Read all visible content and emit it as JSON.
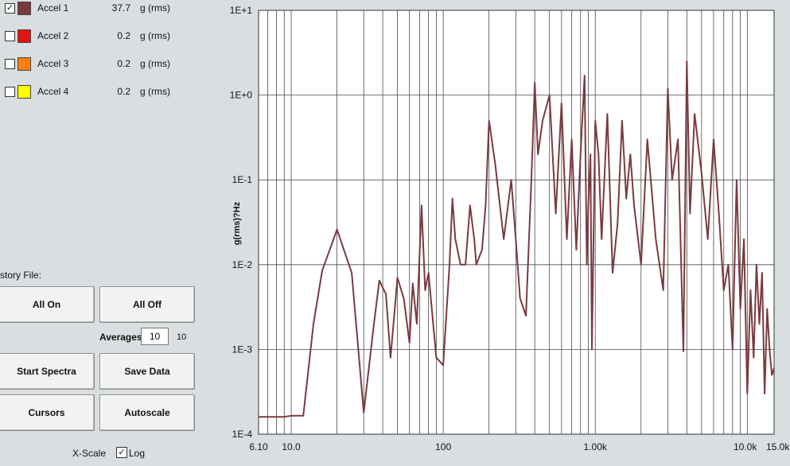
{
  "channels": [
    {
      "label": "Accel 1",
      "value": "37.7",
      "unit": "g (rms)",
      "checked": true,
      "color": "#7a3a3f"
    },
    {
      "label": "Accel 2",
      "value": "0.2",
      "unit": "g (rms)",
      "checked": false,
      "color": "#e3140f"
    },
    {
      "label": "Accel 3",
      "value": "0.2",
      "unit": "g (rms)",
      "checked": false,
      "color": "#ff7f15"
    },
    {
      "label": "Accel 4",
      "value": "0.2",
      "unit": "g (rms)",
      "checked": false,
      "color": "#ffff00"
    }
  ],
  "history_file_label": "story File:",
  "buttons": {
    "all_on": "All On",
    "all_off": "All Off",
    "start_spectra": "Start Spectra",
    "save_data": "Save Data",
    "cursors": "Cursors",
    "autoscale": "Autoscale"
  },
  "averages": {
    "label": "Averages",
    "input_value": "10",
    "current": "10"
  },
  "xscale": {
    "label": "X-Scale",
    "log_label": "Log",
    "log_checked": true
  },
  "chart_data": {
    "type": "line",
    "ylabel": "g(rms)?Hz",
    "x_scale": "log",
    "y_scale": "log",
    "xlim": [
      6.1,
      15000
    ],
    "ylim": [
      0.0001,
      10
    ],
    "x_tick_labels": [
      "6.10",
      "10.0",
      "100",
      "1.00k",
      "10.0k",
      "15.0k"
    ],
    "y_tick_labels": [
      "1E+1",
      "1E+0",
      "1E-1",
      "1E-2",
      "1E-3",
      "1E-4"
    ],
    "grid": true,
    "series": [
      {
        "color": "#7a3a3f",
        "x": [
          6.1,
          7,
          8,
          9,
          10,
          11,
          12,
          14,
          16,
          20,
          25,
          30,
          35,
          38,
          42,
          45,
          50,
          55,
          60,
          63,
          67,
          72,
          76,
          80,
          90,
          100,
          110,
          115,
          120,
          130,
          140,
          150,
          160,
          165,
          180,
          190,
          200,
          220,
          250,
          280,
          300,
          320,
          350,
          380,
          400,
          420,
          450,
          500,
          550,
          600,
          650,
          700,
          750,
          800,
          850,
          880,
          900,
          930,
          950,
          1000,
          1050,
          1100,
          1200,
          1300,
          1400,
          1500,
          1600,
          1700,
          1800,
          2000,
          2200,
          2500,
          2800,
          3000,
          3200,
          3500,
          3800,
          4000,
          4200,
          4500,
          5000,
          5500,
          6000,
          6500,
          7000,
          7500,
          8000,
          8500,
          9000,
          9500,
          10000,
          10500,
          11000,
          11500,
          12000,
          12500,
          13000,
          13500,
          14000,
          14500,
          15000
        ],
        "values": [
          0.00016,
          0.00016,
          0.00016,
          0.00016,
          0.000165,
          0.000165,
          0.000165,
          0.002,
          0.0085,
          0.026,
          0.008,
          0.00018,
          0.002,
          0.0065,
          0.0045,
          0.0008,
          0.007,
          0.004,
          0.0012,
          0.006,
          0.002,
          0.05,
          0.005,
          0.008,
          0.0008,
          0.00065,
          0.01,
          0.06,
          0.02,
          0.01,
          0.01,
          0.05,
          0.02,
          0.01,
          0.015,
          0.05,
          0.5,
          0.15,
          0.02,
          0.1,
          0.02,
          0.004,
          0.0025,
          0.1,
          1.4,
          0.2,
          0.5,
          1.0,
          0.04,
          0.8,
          0.02,
          0.3,
          0.015,
          0.2,
          1.7,
          0.01,
          0.05,
          0.2,
          0.001,
          0.5,
          0.2,
          0.02,
          0.6,
          0.008,
          0.03,
          0.5,
          0.06,
          0.2,
          0.05,
          0.01,
          0.3,
          0.02,
          0.005,
          1.2,
          0.1,
          0.3,
          0.00095,
          2.5,
          0.04,
          0.6,
          0.12,
          0.02,
          0.3,
          0.04,
          0.005,
          0.01,
          0.001,
          0.1,
          0.003,
          0.02,
          0.0003,
          0.005,
          0.0008,
          0.01,
          0.002,
          0.008,
          0.0003,
          0.003,
          0.001,
          0.0005,
          0.0006
        ]
      }
    ]
  }
}
